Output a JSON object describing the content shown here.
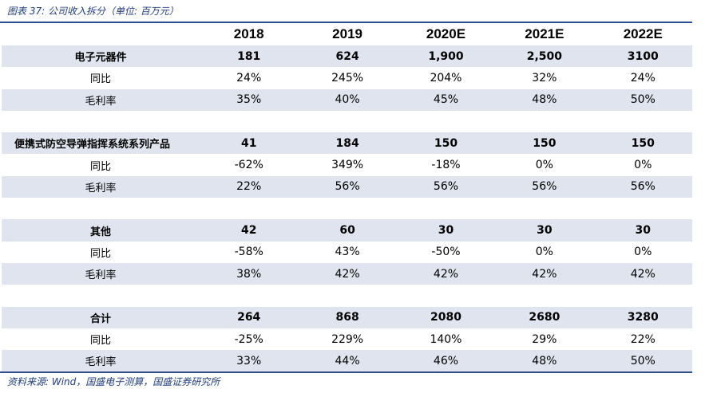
{
  "title": "图表 37:  公司收入拆分（单位:  百万元）",
  "source": "资料来源:  Wind，国盛电子测算，国盛证券研究所",
  "header": [
    "",
    "2018",
    "2019",
    "2020E",
    "2021E",
    "2022E"
  ],
  "groups": [
    {
      "name": "电子元器件",
      "values": [
        "181",
        "624",
        "1,900",
        "2,500",
        "3100"
      ],
      "yoy_label": "同比",
      "yoy": [
        "24%",
        "245%",
        "204%",
        "32%",
        "24%"
      ],
      "margin_label": "毛利率",
      "margin": [
        "35%",
        "40%",
        "45%",
        "48%",
        "50%"
      ]
    },
    {
      "name": "便携式防空导弹指挥系统系列产品",
      "values": [
        "41",
        "184",
        "150",
        "150",
        "150"
      ],
      "yoy_label": "同比",
      "yoy": [
        "-62%",
        "349%",
        "-18%",
        "0%",
        "0%"
      ],
      "margin_label": "毛利率",
      "margin": [
        "22%",
        "56%",
        "56%",
        "56%",
        "56%"
      ]
    },
    {
      "name": "其他",
      "values": [
        "42",
        "60",
        "30",
        "30",
        "30"
      ],
      "yoy_label": "同比",
      "yoy": [
        "-58%",
        "43%",
        "-50%",
        "0%",
        "0%"
      ],
      "margin_label": "毛利率",
      "margin": [
        "38%",
        "42%",
        "42%",
        "42%",
        "42%"
      ]
    },
    {
      "name": "合计",
      "values": [
        "264",
        "868",
        "2080",
        "2680",
        "3280"
      ],
      "yoy_label": "同比",
      "yoy": [
        "-25%",
        "229%",
        "140%",
        "29%",
        "22%"
      ],
      "margin_label": "毛利率",
      "margin": [
        "33%",
        "44%",
        "46%",
        "48%",
        "50%"
      ]
    }
  ],
  "colors": {
    "accent": "#2b4d8c",
    "title": "#1f3d7a",
    "shade": "#dfe4ee"
  }
}
